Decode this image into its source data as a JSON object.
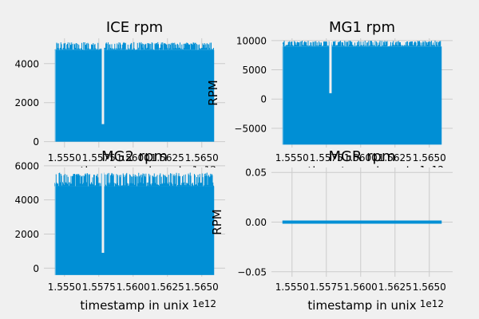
{
  "figure": {
    "background": "#f0f0f0",
    "axes_background": "#f0f0f0",
    "grid_color": "#cbcbcb",
    "series_color": "#008fd5"
  },
  "chart_data": [
    {
      "type": "line",
      "title": "ICE rpm",
      "xlabel": "timestamp in unix",
      "ylabel": "",
      "x_offset_label": "1e12",
      "xlim": [
        1.5535,
        1.5667
      ],
      "ylim": [
        -300,
        5300
      ],
      "xticks": [
        1.555,
        1.5575,
        1.56,
        1.5625,
        1.565
      ],
      "xtick_labels": [
        "1.5550",
        "1.5575",
        "1.5600",
        "1.5625",
        "1.5650"
      ],
      "yticks": [
        0,
        2000,
        4000
      ],
      "ytick_labels": [
        "0",
        "2000",
        "4000"
      ],
      "grid": true,
      "x_range": [
        1.5543,
        1.5659
      ],
      "y_min": 0,
      "y_max": 5100,
      "dense_level": 4700,
      "gap_at": 1.5578,
      "gap_min": 900
    },
    {
      "type": "line",
      "title": "MG1 rpm",
      "xlabel": "timestamp in unix",
      "ylabel": "RPM",
      "x_offset_label": "1e12",
      "xlim": [
        1.5535,
        1.5667
      ],
      "ylim": [
        -8300,
        10400
      ],
      "xticks": [
        1.555,
        1.5575,
        1.56,
        1.5625,
        1.565
      ],
      "xtick_labels": [
        "1.5550",
        "1.5575",
        "1.5600",
        "1.5625",
        "1.5650"
      ],
      "yticks": [
        -5000,
        0,
        5000,
        10000
      ],
      "ytick_labels": [
        "−5000",
        "0",
        "5000",
        "10000"
      ],
      "grid": true,
      "x_range": [
        1.5543,
        1.5659
      ],
      "y_min": -7800,
      "y_max": 10000,
      "dense_level": 9000,
      "gap_at": 1.5578,
      "gap_min": 1000
    },
    {
      "type": "line",
      "title": "MG2 rpm",
      "xlabel": "timestamp in unix",
      "ylabel": "",
      "x_offset_label": "1e12",
      "xlim": [
        1.5535,
        1.5667
      ],
      "ylim": [
        -500,
        5900
      ],
      "xticks": [
        1.555,
        1.5575,
        1.56,
        1.5625,
        1.565
      ],
      "xtick_labels": [
        "1.5550",
        "1.5575",
        "1.5600",
        "1.5625",
        "1.5650"
      ],
      "yticks": [
        0,
        2000,
        4000,
        6000
      ],
      "ytick_labels": [
        "0",
        "2000",
        "4000",
        "6000"
      ],
      "grid": true,
      "x_range": [
        1.5543,
        1.5659
      ],
      "y_min": -400,
      "y_max": 5600,
      "dense_level": 4800,
      "gap_at": 1.5578,
      "gap_min": 900
    },
    {
      "type": "line",
      "title": "MGR rpm",
      "xlabel": "timestamp in unix",
      "ylabel": "RPM",
      "x_offset_label": "1e12",
      "xlim": [
        1.5535,
        1.5667
      ],
      "ylim": [
        -0.055,
        0.055
      ],
      "xticks": [
        1.555,
        1.5575,
        1.56,
        1.5625,
        1.565
      ],
      "xtick_labels": [
        "1.5550",
        "1.5575",
        "1.5600",
        "1.5625",
        "1.5650"
      ],
      "yticks": [
        -0.05,
        0,
        0.05
      ],
      "ytick_labels": [
        "−0.05",
        "0.00",
        "0.05"
      ],
      "grid": true,
      "x_range": [
        1.5543,
        1.5659
      ],
      "y_constant": 0
    }
  ]
}
